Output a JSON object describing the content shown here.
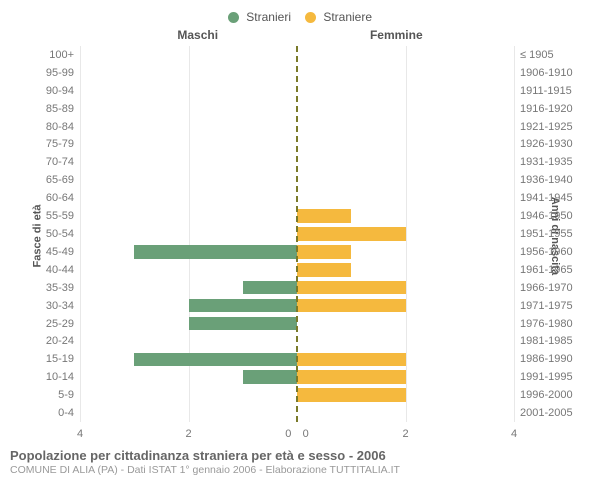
{
  "legend": {
    "male": {
      "label": "Stranieri",
      "color": "#6aa078"
    },
    "female": {
      "label": "Straniere",
      "color": "#f5b93e"
    }
  },
  "columns": {
    "male": "Maschi",
    "female": "Femmine"
  },
  "y_titles": {
    "left": "Fasce di età",
    "right": "Anni di nascita"
  },
  "x_axis": {
    "max": 4,
    "ticks": [
      4,
      2,
      0,
      0,
      2,
      4
    ]
  },
  "style": {
    "background": "#ffffff",
    "grid_color": "#e8e8e8",
    "center_line_color": "#7a7a2a",
    "label_fontsize": 11
  },
  "rows": [
    {
      "age": "100+",
      "birth": "≤ 1905",
      "m": 0,
      "f": 0
    },
    {
      "age": "95-99",
      "birth": "1906-1910",
      "m": 0,
      "f": 0
    },
    {
      "age": "90-94",
      "birth": "1911-1915",
      "m": 0,
      "f": 0
    },
    {
      "age": "85-89",
      "birth": "1916-1920",
      "m": 0,
      "f": 0
    },
    {
      "age": "80-84",
      "birth": "1921-1925",
      "m": 0,
      "f": 0
    },
    {
      "age": "75-79",
      "birth": "1926-1930",
      "m": 0,
      "f": 0
    },
    {
      "age": "70-74",
      "birth": "1931-1935",
      "m": 0,
      "f": 0
    },
    {
      "age": "65-69",
      "birth": "1936-1940",
      "m": 0,
      "f": 0
    },
    {
      "age": "60-64",
      "birth": "1941-1945",
      "m": 0,
      "f": 0
    },
    {
      "age": "55-59",
      "birth": "1946-1950",
      "m": 0,
      "f": 1
    },
    {
      "age": "50-54",
      "birth": "1951-1955",
      "m": 0,
      "f": 2
    },
    {
      "age": "45-49",
      "birth": "1956-1960",
      "m": 3,
      "f": 1
    },
    {
      "age": "40-44",
      "birth": "1961-1965",
      "m": 0,
      "f": 1
    },
    {
      "age": "35-39",
      "birth": "1966-1970",
      "m": 1,
      "f": 2
    },
    {
      "age": "30-34",
      "birth": "1971-1975",
      "m": 2,
      "f": 2
    },
    {
      "age": "25-29",
      "birth": "1976-1980",
      "m": 2,
      "f": 0
    },
    {
      "age": "20-24",
      "birth": "1981-1985",
      "m": 0,
      "f": 0
    },
    {
      "age": "15-19",
      "birth": "1986-1990",
      "m": 3,
      "f": 2
    },
    {
      "age": "10-14",
      "birth": "1991-1995",
      "m": 1,
      "f": 2
    },
    {
      "age": "5-9",
      "birth": "1996-2000",
      "m": 0,
      "f": 2
    },
    {
      "age": "0-4",
      "birth": "2001-2005",
      "m": 0,
      "f": 0
    }
  ],
  "footer": {
    "title": "Popolazione per cittadinanza straniera per età e sesso - 2006",
    "subtitle": "COMUNE DI ALIA (PA) - Dati ISTAT 1° gennaio 2006 - Elaborazione TUTTITALIA.IT"
  }
}
